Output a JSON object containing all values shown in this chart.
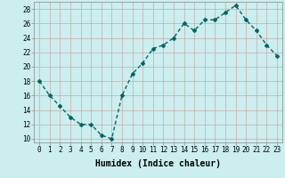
{
  "x": [
    0,
    1,
    2,
    3,
    4,
    5,
    6,
    7,
    8,
    9,
    10,
    11,
    12,
    13,
    14,
    15,
    16,
    17,
    18,
    19,
    20,
    21,
    22,
    23
  ],
  "y": [
    18,
    16,
    14.5,
    13,
    12,
    12,
    10.5,
    10,
    16,
    19,
    20.5,
    22.5,
    23,
    24,
    26,
    25,
    26.5,
    26.5,
    27.5,
    28.5,
    26.5,
    25,
    23,
    21.5
  ],
  "line_color": "#006666",
  "marker": "D",
  "marker_size": 2.0,
  "bg_color": "#cceeee",
  "grid_color": "#bbdddd",
  "xlabel": "Humidex (Indice chaleur)",
  "xlabel_fontsize": 7,
  "ylim": [
    9.5,
    29
  ],
  "xlim": [
    -0.5,
    23.5
  ],
  "yticks": [
    10,
    12,
    14,
    16,
    18,
    20,
    22,
    24,
    26,
    28
  ],
  "xticks": [
    0,
    1,
    2,
    3,
    4,
    5,
    6,
    7,
    8,
    9,
    10,
    11,
    12,
    13,
    14,
    15,
    16,
    17,
    18,
    19,
    20,
    21,
    22,
    23
  ],
  "tick_fontsize": 5.5,
  "line_width": 1.0
}
